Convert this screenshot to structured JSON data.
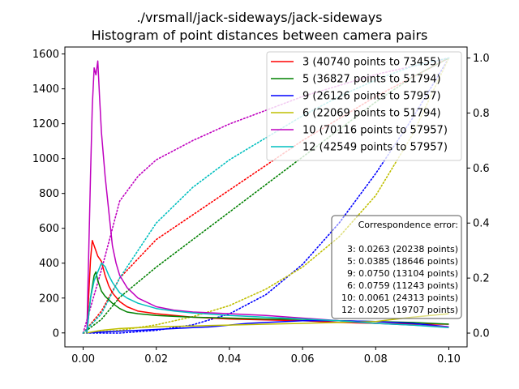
{
  "chart_data": {
    "type": "line",
    "title": "./vrsmall/jack-sideways/jack-sideways",
    "subtitle": "Histogram of point distances between camera pairs",
    "xlabel": "",
    "ylabel": "",
    "xlim": [
      -0.005,
      0.105
    ],
    "ylim_left": [
      -80,
      1640
    ],
    "ylim_right": [
      -0.05,
      1.04
    ],
    "x_ticks": [
      0.0,
      0.02,
      0.04,
      0.06,
      0.08,
      0.1
    ],
    "x_tick_labels": [
      "0.00",
      "0.02",
      "0.04",
      "0.06",
      "0.08",
      "0.10"
    ],
    "y_ticks_left": [
      0,
      200,
      400,
      600,
      800,
      1000,
      1200,
      1400,
      1600
    ],
    "y_tick_labels_left": [
      "0",
      "200",
      "400",
      "600",
      "800",
      "1000",
      "1200",
      "1400",
      "1600"
    ],
    "y_ticks_right": [
      0.0,
      0.2,
      0.4,
      0.6,
      0.8,
      1.0
    ],
    "y_tick_labels_right": [
      "0.0",
      "0.2",
      "0.4",
      "0.6",
      "0.8",
      "1.0"
    ],
    "grid": false,
    "legend_position": "top-right",
    "series": [
      {
        "name": "3 (40740 points to 73455)",
        "color": "#ff0000",
        "histogram": [
          [
            0.001,
            0
          ],
          [
            0.002,
            420
          ],
          [
            0.0025,
            530
          ],
          [
            0.003,
            500
          ],
          [
            0.004,
            440
          ],
          [
            0.005,
            410
          ],
          [
            0.006,
            330
          ],
          [
            0.007,
            270
          ],
          [
            0.008,
            230
          ],
          [
            0.01,
            180
          ],
          [
            0.012,
            150
          ],
          [
            0.015,
            125
          ],
          [
            0.02,
            110
          ],
          [
            0.025,
            100
          ],
          [
            0.03,
            90
          ],
          [
            0.04,
            80
          ],
          [
            0.05,
            75
          ],
          [
            0.06,
            70
          ],
          [
            0.07,
            60
          ],
          [
            0.08,
            55
          ],
          [
            0.09,
            50
          ],
          [
            0.1,
            50
          ]
        ],
        "cumulative": [
          [
            0.0,
            0.0
          ],
          [
            0.005,
            0.08
          ],
          [
            0.01,
            0.2
          ],
          [
            0.02,
            0.34
          ],
          [
            0.03,
            0.43
          ],
          [
            0.04,
            0.52
          ],
          [
            0.05,
            0.61
          ],
          [
            0.06,
            0.7
          ],
          [
            0.07,
            0.78
          ],
          [
            0.08,
            0.86
          ],
          [
            0.09,
            0.93
          ],
          [
            0.1,
            1.0
          ]
        ]
      },
      {
        "name": "5 (36827 points to 51794)",
        "color": "#008000",
        "histogram": [
          [
            0.001,
            0
          ],
          [
            0.002,
            200
          ],
          [
            0.003,
            330
          ],
          [
            0.0035,
            350
          ],
          [
            0.004,
            300
          ],
          [
            0.005,
            240
          ],
          [
            0.006,
            210
          ],
          [
            0.008,
            170
          ],
          [
            0.01,
            140
          ],
          [
            0.012,
            120
          ],
          [
            0.015,
            110
          ],
          [
            0.02,
            100
          ],
          [
            0.025,
            95
          ],
          [
            0.03,
            90
          ],
          [
            0.04,
            85
          ],
          [
            0.05,
            80
          ],
          [
            0.06,
            78
          ],
          [
            0.07,
            70
          ],
          [
            0.08,
            65
          ],
          [
            0.09,
            60
          ],
          [
            0.1,
            50
          ]
        ],
        "cumulative": [
          [
            0.0,
            0.0
          ],
          [
            0.005,
            0.05
          ],
          [
            0.01,
            0.13
          ],
          [
            0.02,
            0.24
          ],
          [
            0.03,
            0.34
          ],
          [
            0.04,
            0.44
          ],
          [
            0.05,
            0.54
          ],
          [
            0.06,
            0.64
          ],
          [
            0.07,
            0.74
          ],
          [
            0.08,
            0.84
          ],
          [
            0.09,
            0.93
          ],
          [
            0.1,
            1.0
          ]
        ]
      },
      {
        "name": "9 (26126 points to 57957)",
        "color": "#0000ff",
        "histogram": [
          [
            0.001,
            0
          ],
          [
            0.005,
            5
          ],
          [
            0.01,
            10
          ],
          [
            0.015,
            15
          ],
          [
            0.02,
            20
          ],
          [
            0.025,
            25
          ],
          [
            0.03,
            30
          ],
          [
            0.035,
            35
          ],
          [
            0.04,
            45
          ],
          [
            0.045,
            55
          ],
          [
            0.05,
            60
          ],
          [
            0.06,
            70
          ],
          [
            0.07,
            70
          ],
          [
            0.08,
            65
          ],
          [
            0.09,
            55
          ],
          [
            0.1,
            35
          ]
        ],
        "cumulative": [
          [
            0.0,
            0.0
          ],
          [
            0.01,
            0.0
          ],
          [
            0.02,
            0.01
          ],
          [
            0.03,
            0.03
          ],
          [
            0.04,
            0.07
          ],
          [
            0.05,
            0.14
          ],
          [
            0.06,
            0.25
          ],
          [
            0.07,
            0.4
          ],
          [
            0.08,
            0.58
          ],
          [
            0.09,
            0.78
          ],
          [
            0.1,
            1.0
          ]
        ]
      },
      {
        "name": "6 (22069 points to 51794)",
        "color": "#bfbf00",
        "histogram": [
          [
            0.001,
            0
          ],
          [
            0.005,
            15
          ],
          [
            0.01,
            25
          ],
          [
            0.015,
            30
          ],
          [
            0.02,
            35
          ],
          [
            0.03,
            40
          ],
          [
            0.04,
            45
          ],
          [
            0.05,
            50
          ],
          [
            0.06,
            55
          ],
          [
            0.07,
            60
          ],
          [
            0.08,
            65
          ],
          [
            0.09,
            90
          ],
          [
            0.1,
            110
          ]
        ],
        "cumulative": [
          [
            0.0,
            0.0
          ],
          [
            0.01,
            0.01
          ],
          [
            0.02,
            0.03
          ],
          [
            0.03,
            0.06
          ],
          [
            0.04,
            0.1
          ],
          [
            0.05,
            0.16
          ],
          [
            0.06,
            0.24
          ],
          [
            0.07,
            0.35
          ],
          [
            0.08,
            0.5
          ],
          [
            0.09,
            0.72
          ],
          [
            0.1,
            1.0
          ]
        ]
      },
      {
        "name": "10 (70116 points to 57957)",
        "color": "#bf00bf",
        "histogram": [
          [
            0.001,
            0
          ],
          [
            0.002,
            900
          ],
          [
            0.0025,
            1300
          ],
          [
            0.003,
            1520
          ],
          [
            0.0035,
            1480
          ],
          [
            0.004,
            1560
          ],
          [
            0.0045,
            1350
          ],
          [
            0.005,
            1150
          ],
          [
            0.006,
            900
          ],
          [
            0.007,
            700
          ],
          [
            0.008,
            500
          ],
          [
            0.009,
            400
          ],
          [
            0.01,
            330
          ],
          [
            0.012,
            260
          ],
          [
            0.015,
            200
          ],
          [
            0.02,
            150
          ],
          [
            0.025,
            130
          ],
          [
            0.03,
            120
          ],
          [
            0.04,
            110
          ],
          [
            0.05,
            100
          ],
          [
            0.06,
            85
          ],
          [
            0.07,
            70
          ],
          [
            0.08,
            55
          ],
          [
            0.09,
            45
          ],
          [
            0.1,
            35
          ]
        ],
        "cumulative": [
          [
            0.0,
            0.0
          ],
          [
            0.005,
            0.23
          ],
          [
            0.01,
            0.48
          ],
          [
            0.015,
            0.57
          ],
          [
            0.02,
            0.63
          ],
          [
            0.03,
            0.7
          ],
          [
            0.04,
            0.76
          ],
          [
            0.05,
            0.81
          ],
          [
            0.06,
            0.86
          ],
          [
            0.07,
            0.9
          ],
          [
            0.08,
            0.94
          ],
          [
            0.09,
            0.97
          ],
          [
            0.1,
            1.0
          ]
        ]
      },
      {
        "name": "12 (42549 points to 57957)",
        "color": "#00bfbf",
        "histogram": [
          [
            0.001,
            0
          ],
          [
            0.002,
            200
          ],
          [
            0.003,
            300
          ],
          [
            0.004,
            350
          ],
          [
            0.005,
            400
          ],
          [
            0.006,
            380
          ],
          [
            0.007,
            330
          ],
          [
            0.008,
            290
          ],
          [
            0.01,
            230
          ],
          [
            0.012,
            200
          ],
          [
            0.015,
            170
          ],
          [
            0.02,
            140
          ],
          [
            0.025,
            125
          ],
          [
            0.03,
            115
          ],
          [
            0.04,
            100
          ],
          [
            0.05,
            90
          ],
          [
            0.06,
            80
          ],
          [
            0.07,
            70
          ],
          [
            0.08,
            55
          ],
          [
            0.09,
            45
          ],
          [
            0.1,
            30
          ]
        ],
        "cumulative": [
          [
            0.0,
            0.0
          ],
          [
            0.005,
            0.07
          ],
          [
            0.01,
            0.2
          ],
          [
            0.02,
            0.4
          ],
          [
            0.03,
            0.53
          ],
          [
            0.04,
            0.63
          ],
          [
            0.05,
            0.71
          ],
          [
            0.06,
            0.79
          ],
          [
            0.07,
            0.86
          ],
          [
            0.08,
            0.92
          ],
          [
            0.09,
            0.97
          ],
          [
            0.1,
            1.0
          ]
        ]
      }
    ],
    "annotation": {
      "lines": [
        "Correspondence error:",
        "",
        "3: 0.0263 (20238 points)",
        "5: 0.0385 (18646 points)",
        "9: 0.0750 (13104 points)",
        "6: 0.0759 (11243 points)",
        "10: 0.0061 (24313 points)",
        "12: 0.0205 (19707 points)"
      ]
    }
  }
}
